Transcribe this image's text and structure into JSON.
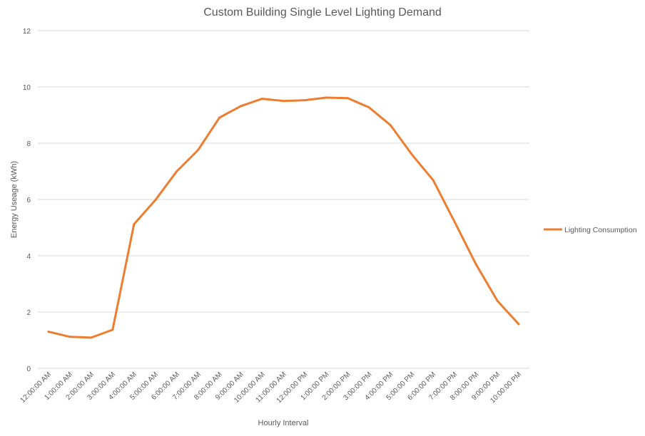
{
  "chart_data": {
    "type": "line",
    "title": "Custom Building Single Level Lighting Demand",
    "xlabel": "Hourly Interval",
    "ylabel": "Energy Useage (kWh)",
    "ylim": [
      0,
      12
    ],
    "yticks": [
      "0",
      "2",
      "4",
      "6",
      "8",
      "10",
      "12"
    ],
    "grid": true,
    "legend_position": "right",
    "categories": [
      "12:00:00 AM",
      "1:00:00 AM",
      "2:00:00 AM",
      "3:00:00 AM",
      "4:00:00 AM",
      "5:00:00 AM",
      "6:00:00 AM",
      "7:00:00 AM",
      "8:00:00 AM",
      "9:00:00 AM",
      "10:00:00 AM",
      "11:00:00 AM",
      "12:00:00 PM",
      "1:00:00 PM",
      "2:00:00 PM",
      "3:00:00 PM",
      "4:00:00 PM",
      "5:00:00 PM",
      "6:00:00 PM",
      "7:00:00 PM",
      "8:00:00 PM",
      "9:00:00 PM",
      "10:00:00 PM"
    ],
    "series": [
      {
        "name": "Lighting Consumption",
        "color": "#ED7D31",
        "values": [
          1.3,
          1.12,
          1.09,
          1.37,
          5.12,
          5.98,
          7.0,
          7.76,
          8.91,
          9.32,
          9.58,
          9.5,
          9.53,
          9.62,
          9.6,
          9.27,
          8.64,
          7.6,
          6.68,
          5.2,
          3.7,
          2.4,
          1.57
        ]
      }
    ]
  }
}
